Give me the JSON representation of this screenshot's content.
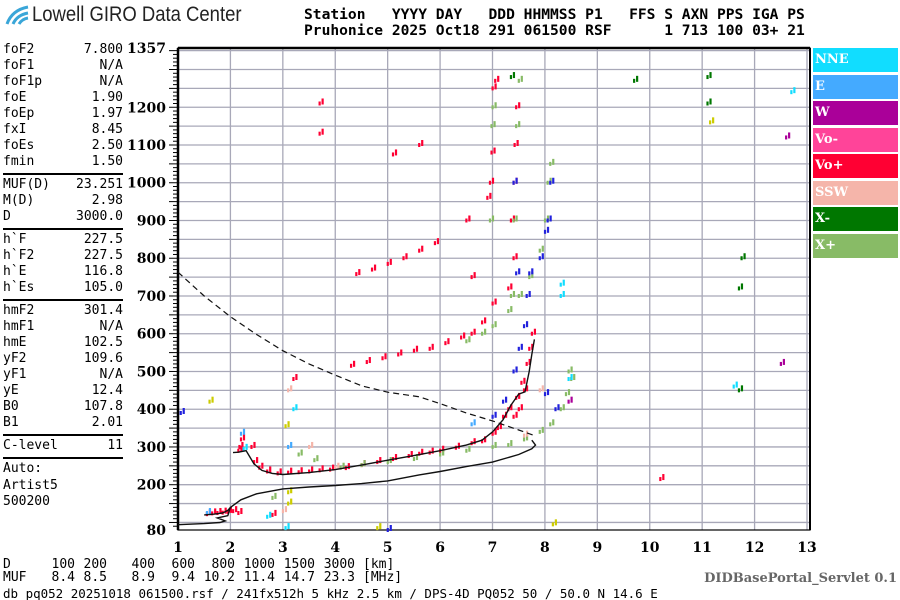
{
  "header": {
    "logo_text": "Lowell GIRO Data Center",
    "line1": "Station   YYYY DAY   DDD HHMMSS P1   FFS S AXN PPS IGA PS",
    "line2": "Pruhonice 2025 Oct18 291 061500 RSF      1 713 100 03+ 21"
  },
  "params": {
    "group1": [
      [
        "foF2",
        "7.800"
      ],
      [
        "foF1",
        "N/A"
      ],
      [
        "foF1p",
        "N/A"
      ],
      [
        "foE",
        "1.90"
      ],
      [
        "foEp",
        "1.97"
      ],
      [
        "fxI",
        "8.45"
      ],
      [
        "foEs",
        "2.50"
      ],
      [
        "fmin",
        "1.50"
      ]
    ],
    "group2": [
      [
        "MUF(D)",
        "23.251"
      ],
      [
        "M(D)",
        "2.98"
      ],
      [
        "D",
        "3000.0"
      ]
    ],
    "group3": [
      [
        "h`F",
        "227.5"
      ],
      [
        "h`F2",
        "227.5"
      ],
      [
        "h`E",
        "116.8"
      ],
      [
        "h`Es",
        "105.0"
      ]
    ],
    "group4": [
      [
        "hmF2",
        "301.4"
      ],
      [
        "hmF1",
        "N/A"
      ],
      [
        "hmE",
        "102.5"
      ],
      [
        "yF2",
        "109.6"
      ],
      [
        "yF1",
        "N/A"
      ],
      [
        "yE",
        "12.4"
      ],
      [
        "B0",
        "107.8"
      ],
      [
        "B1",
        "2.01"
      ]
    ],
    "group5": [
      [
        "C-level",
        "11"
      ]
    ],
    "auto": [
      "Auto:",
      "Artist5",
      "500200"
    ]
  },
  "legend": [
    {
      "label": "NNE",
      "color": "#11ddff"
    },
    {
      "label": "E",
      "color": "#44aaff"
    },
    {
      "label": "W",
      "color": "#aa0099"
    },
    {
      "label": "Vo-",
      "color": "#ff4499"
    },
    {
      "label": "Vo+",
      "color": "#ff0033"
    },
    {
      "label": "SSW",
      "color": "#f5b5aa"
    },
    {
      "label": "X-",
      "color": "#007700"
    },
    {
      "label": "X+",
      "color": "#88bb66"
    }
  ],
  "muf_table": {
    "d_label": "D",
    "d_values": [
      "100",
      "200",
      "400",
      "600",
      "800",
      "1000",
      "1500",
      "3000"
    ],
    "d_unit": "[km]",
    "muf_label": "MUF",
    "muf_values": [
      "8.4",
      "8.5",
      "8.9",
      "9.4",
      "10.2",
      "11.4",
      "14.7",
      "23.3"
    ],
    "muf_unit": "[MHz]"
  },
  "footer": "db pq052 20251018 061500.rsf / 241fx512h 5 kHz 2.5 km / DPS-4D PQ052 50 / 50.0 N 14.6 E",
  "servlet": "DIDBasePortal_Servlet 0.1",
  "chart_data": {
    "type": "scatter",
    "xlim": [
      1,
      13
    ],
    "ylim": [
      80,
      1357
    ],
    "x_ticks": [
      "1",
      "2",
      "3",
      "4",
      "5",
      "6",
      "7",
      "8",
      "9",
      "10",
      "11",
      "12",
      "13"
    ],
    "y_ticks": [
      "80",
      "200",
      "300",
      "400",
      "500",
      "600",
      "700",
      "800",
      "900",
      "1000",
      "1100",
      "1200",
      "1357"
    ],
    "grid": true,
    "legend_placement": "right",
    "curves": {
      "virtual_height_trace": [
        [
          1.5,
          120
        ],
        [
          1.7,
          122
        ],
        [
          1.85,
          125
        ],
        [
          1.95,
          132
        ],
        [
          2.0,
          140
        ]
      ],
      "virtual_height_trace_f": [
        [
          2.05,
          285
        ],
        [
          2.15,
          286
        ],
        [
          2.3,
          290
        ],
        [
          2.45,
          255
        ],
        [
          2.6,
          238
        ],
        [
          2.8,
          230
        ],
        [
          3.0,
          227
        ],
        [
          3.5,
          232
        ],
        [
          4.0,
          240
        ],
        [
          4.5,
          252
        ],
        [
          5.0,
          265
        ],
        [
          5.5,
          277
        ],
        [
          6.0,
          290
        ],
        [
          6.5,
          305
        ],
        [
          6.8,
          318
        ],
        [
          7.0,
          340
        ],
        [
          7.2,
          372
        ],
        [
          7.35,
          410
        ],
        [
          7.5,
          440
        ],
        [
          7.62,
          446
        ],
        [
          7.7,
          500
        ],
        [
          7.75,
          545
        ],
        [
          7.8,
          585
        ]
      ],
      "true_height_profile": [
        [
          1.0,
          94
        ],
        [
          1.5,
          97
        ],
        [
          1.8,
          100
        ],
        [
          1.9,
          104
        ],
        [
          1.75,
          112
        ],
        [
          1.95,
          118
        ],
        [
          2.0,
          140
        ],
        [
          2.2,
          160
        ],
        [
          2.5,
          176
        ],
        [
          3.0,
          189
        ],
        [
          3.5,
          194
        ],
        [
          4.0,
          198
        ],
        [
          4.5,
          203
        ],
        [
          5.0,
          210
        ],
        [
          5.6,
          226
        ],
        [
          6.0,
          235
        ],
        [
          6.5,
          248
        ],
        [
          7.0,
          260
        ],
        [
          7.5,
          280
        ],
        [
          7.75,
          295
        ],
        [
          7.82,
          305
        ],
        [
          7.75,
          318
        ]
      ],
      "muf_curve_dashed": [
        [
          1.0,
          763
        ],
        [
          1.5,
          700
        ],
        [
          2.0,
          645
        ],
        [
          2.5,
          598
        ],
        [
          3.0,
          555
        ],
        [
          3.5,
          520
        ],
        [
          4.0,
          490
        ],
        [
          4.5,
          462
        ],
        [
          5.0,
          445
        ],
        [
          5.6,
          433
        ],
        [
          6.0,
          415
        ],
        [
          6.5,
          390
        ],
        [
          7.0,
          369
        ],
        [
          7.5,
          345
        ],
        [
          7.8,
          330
        ]
      ]
    },
    "series": [
      {
        "name": "Vo+",
        "color": "#ff0033",
        "points": [
          [
            1.55,
            122
          ],
          [
            1.65,
            124
          ],
          [
            1.75,
            125
          ],
          [
            1.85,
            126
          ],
          [
            1.95,
            128
          ],
          [
            2.05,
            130
          ],
          [
            2.15,
            125
          ],
          [
            2.15,
            290
          ],
          [
            2.17,
            300
          ],
          [
            2.2,
            320
          ],
          [
            2.4,
            300
          ],
          [
            2.45,
            260
          ],
          [
            2.55,
            245
          ],
          [
            2.7,
            235
          ],
          [
            2.9,
            230
          ],
          [
            3.1,
            232
          ],
          [
            3.3,
            233
          ],
          [
            3.5,
            235
          ],
          [
            3.7,
            238
          ],
          [
            3.9,
            240
          ],
          [
            4.2,
            244
          ],
          [
            4.5,
            252
          ],
          [
            4.8,
            260
          ],
          [
            5.1,
            268
          ],
          [
            5.4,
            276
          ],
          [
            5.6,
            282
          ],
          [
            5.8,
            285
          ],
          [
            6.0,
            290
          ],
          [
            6.3,
            298
          ],
          [
            6.6,
            310
          ],
          [
            6.8,
            315
          ],
          [
            7.0,
            335
          ],
          [
            7.1,
            350
          ],
          [
            7.2,
            380
          ],
          [
            7.3,
            400
          ],
          [
            7.45,
            430
          ],
          [
            7.55,
            470
          ],
          [
            7.65,
            520
          ],
          [
            7.7,
            560
          ],
          [
            7.75,
            600
          ],
          [
            7.6,
            450
          ],
          [
            7.5,
            400
          ],
          [
            7.4,
            380
          ],
          [
            4.3,
            515
          ],
          [
            4.6,
            525
          ],
          [
            4.9,
            535
          ],
          [
            5.2,
            545
          ],
          [
            5.5,
            555
          ],
          [
            5.8,
            560
          ],
          [
            6.1,
            575
          ],
          [
            6.4,
            590
          ],
          [
            6.6,
            600
          ],
          [
            6.8,
            630
          ],
          [
            7.0,
            680
          ],
          [
            7.3,
            720
          ],
          [
            7.4,
            800
          ],
          [
            7.35,
            900
          ],
          [
            7.4,
            1000
          ],
          [
            7.42,
            1100
          ],
          [
            7.45,
            1200
          ],
          [
            4.4,
            758
          ],
          [
            4.7,
            770
          ],
          [
            5.0,
            785
          ],
          [
            5.3,
            800
          ],
          [
            5.6,
            820
          ],
          [
            5.9,
            840
          ],
          [
            6.5,
            900
          ],
          [
            6.9,
            960
          ],
          [
            6.95,
            1000
          ],
          [
            6.98,
            1080
          ],
          [
            7.0,
            1250
          ],
          [
            7.05,
            1270
          ],
          [
            6.6,
            750
          ],
          [
            3.7,
            1210
          ],
          [
            3.7,
            1130
          ],
          [
            3.2,
            480
          ],
          [
            2.8,
            120
          ],
          [
            10.2,
            215
          ],
          [
            5.1,
            1075
          ],
          [
            5.6,
            1100
          ]
        ]
      },
      {
        "name": "X+",
        "color": "#88bb66",
        "points": [
          [
            3.3,
            280
          ],
          [
            3.6,
            265
          ],
          [
            4.1,
            245
          ],
          [
            4.5,
            252
          ],
          [
            5.0,
            260
          ],
          [
            5.5,
            268
          ],
          [
            6.0,
            280
          ],
          [
            6.5,
            290
          ],
          [
            7.0,
            300
          ],
          [
            7.3,
            305
          ],
          [
            7.6,
            320
          ],
          [
            7.9,
            340
          ],
          [
            8.1,
            360
          ],
          [
            8.3,
            400
          ],
          [
            8.4,
            440
          ],
          [
            8.5,
            480
          ],
          [
            8.45,
            500
          ],
          [
            6.5,
            580
          ],
          [
            6.8,
            600
          ],
          [
            7.0,
            620
          ],
          [
            7.3,
            660
          ],
          [
            7.5,
            700
          ],
          [
            7.7,
            750
          ],
          [
            7.9,
            820
          ],
          [
            8.0,
            900
          ],
          [
            8.05,
            1000
          ],
          [
            8.1,
            1050
          ],
          [
            7.35,
            700
          ],
          [
            7.4,
            900
          ],
          [
            7.45,
            1150
          ],
          [
            7.5,
            1270
          ],
          [
            6.95,
            900
          ],
          [
            6.98,
            1150
          ],
          [
            7.0,
            1200
          ],
          [
            2.8,
            165
          ]
        ]
      },
      {
        "color": "#2222dd",
        "points": [
          [
            7.0,
            380
          ],
          [
            7.2,
            420
          ],
          [
            7.4,
            500
          ],
          [
            7.5,
            560
          ],
          [
            7.6,
            620
          ],
          [
            7.65,
            700
          ],
          [
            7.7,
            760
          ],
          [
            7.9,
            800
          ],
          [
            8.0,
            870
          ],
          [
            8.05,
            900
          ],
          [
            8.1,
            1000
          ],
          [
            8.0,
            440
          ],
          [
            8.2,
            400
          ],
          [
            7.45,
            760
          ],
          [
            7.4,
            1000
          ],
          [
            1.05,
            390
          ],
          [
            5.0,
            80
          ]
        ]
      },
      {
        "name": "E",
        "color": "#44aaff",
        "points": [
          [
            2.2,
            335
          ],
          [
            1.55,
            125
          ],
          [
            3.1,
            300
          ],
          [
            6.6,
            360
          ]
        ]
      },
      {
        "name": "NNE",
        "color": "#11ddff",
        "points": [
          [
            2.25,
            295
          ],
          [
            3.05,
            85
          ],
          [
            3.2,
            400
          ],
          [
            8.3,
            700
          ],
          [
            8.3,
            730
          ],
          [
            8.45,
            480
          ],
          [
            2.7,
            115
          ],
          [
            11.6,
            460
          ],
          [
            12.7,
            1240
          ]
        ]
      },
      {
        "name": "SSW",
        "color": "#f5b5aa",
        "points": [
          [
            3.0,
            130
          ],
          [
            3.1,
            450
          ],
          [
            3.5,
            300
          ],
          [
            4.0,
            245
          ],
          [
            7.6,
            330
          ],
          [
            7.9,
            450
          ]
        ]
      },
      {
        "color": "#cccc00",
        "points": [
          [
            3.1,
            150
          ],
          [
            3.1,
            180
          ],
          [
            3.05,
            355
          ],
          [
            1.6,
            420
          ],
          [
            4.8,
            85
          ],
          [
            11.15,
            1160
          ],
          [
            8.15,
            95
          ]
        ]
      },
      {
        "name": "X-",
        "color": "#007700",
        "points": [
          [
            7.35,
            1280
          ],
          [
            9.7,
            1270
          ],
          [
            11.1,
            1280
          ],
          [
            11.1,
            1210
          ],
          [
            11.75,
            800
          ],
          [
            11.7,
            450
          ],
          [
            11.7,
            720
          ]
        ]
      },
      {
        "name": "Vo-",
        "color": "#aa0099",
        "points": [
          [
            8.45,
            420
          ],
          [
            12.5,
            520
          ],
          [
            12.6,
            1120
          ]
        ]
      }
    ]
  }
}
